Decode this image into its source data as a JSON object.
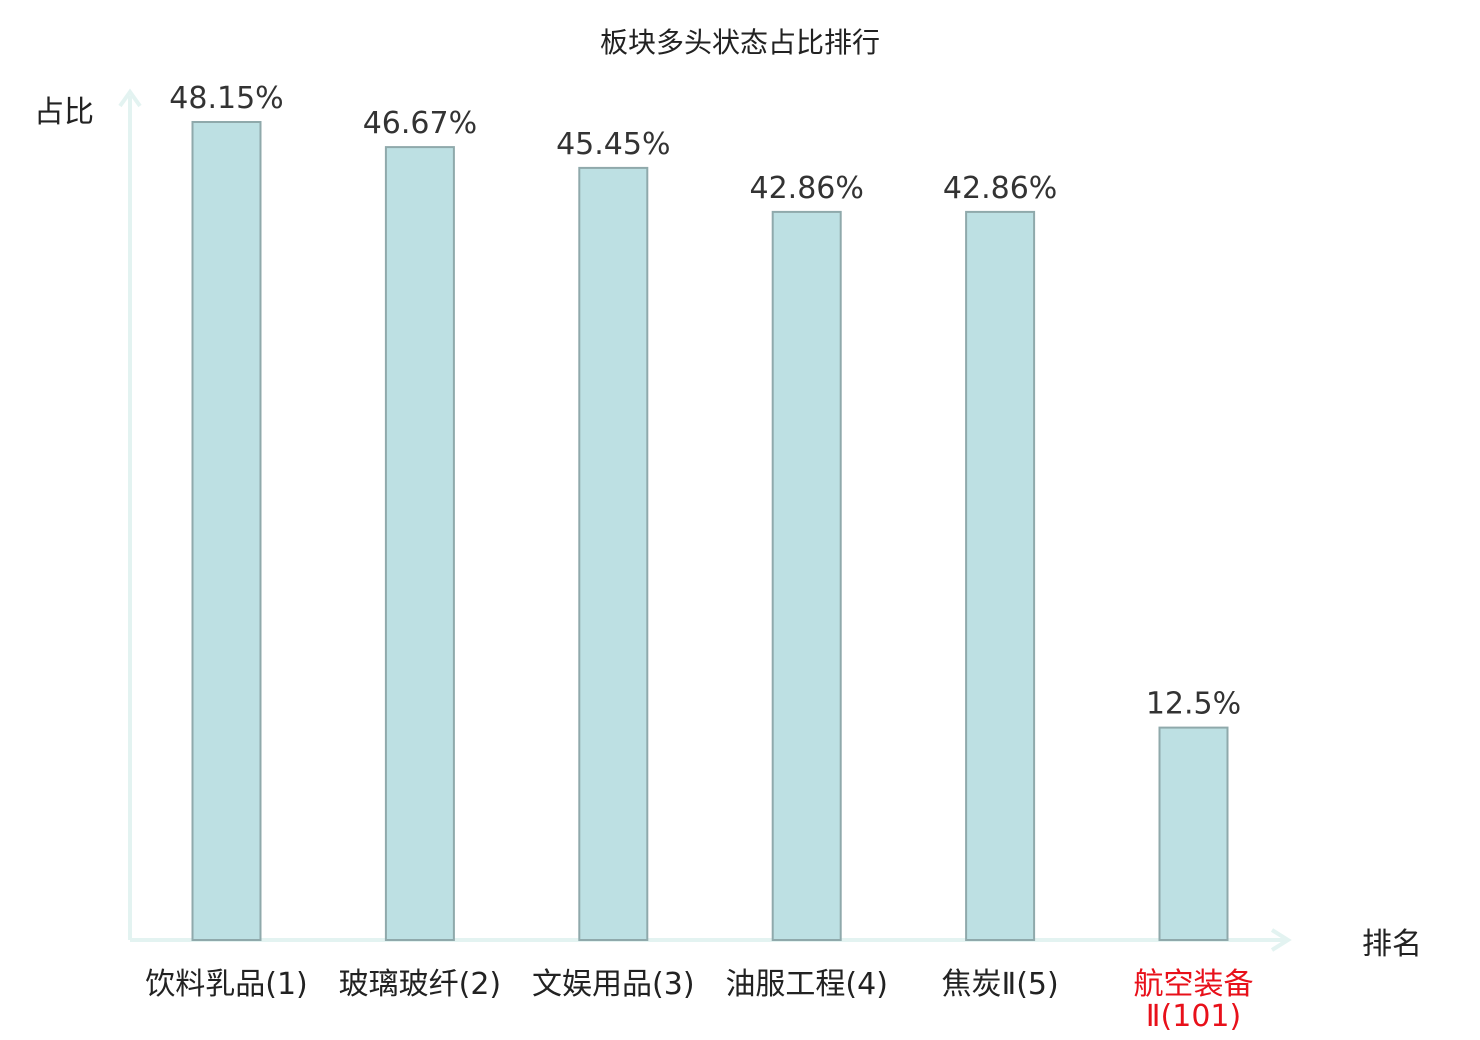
{
  "chart_data": {
    "type": "bar",
    "title": "板块多头状态占比排行",
    "ylabel": "占比",
    "xlabel": "排名",
    "categories": [
      [
        "饮料乳品(1)"
      ],
      [
        "玻璃玻纤(2)"
      ],
      [
        "文娱用品(3)"
      ],
      [
        "油服工程(4)"
      ],
      [
        "焦炭Ⅱ(5)"
      ],
      [
        "航空装备",
        "Ⅱ(101)"
      ]
    ],
    "values": [
      48.15,
      46.67,
      45.45,
      42.86,
      42.86,
      12.5
    ],
    "value_labels": [
      "48.15%",
      "46.67%",
      "45.45%",
      "42.86%",
      "42.86%",
      "12.5%"
    ],
    "highlight_index": 5,
    "ylim": [
      0,
      48.15
    ],
    "grid": false,
    "colors": {
      "bar_fill": "#bde0e3",
      "bar_stroke": "#8fa9ab",
      "axis": "#e3f3f1",
      "highlight_text": "#e8101a",
      "text": "#222222"
    }
  }
}
